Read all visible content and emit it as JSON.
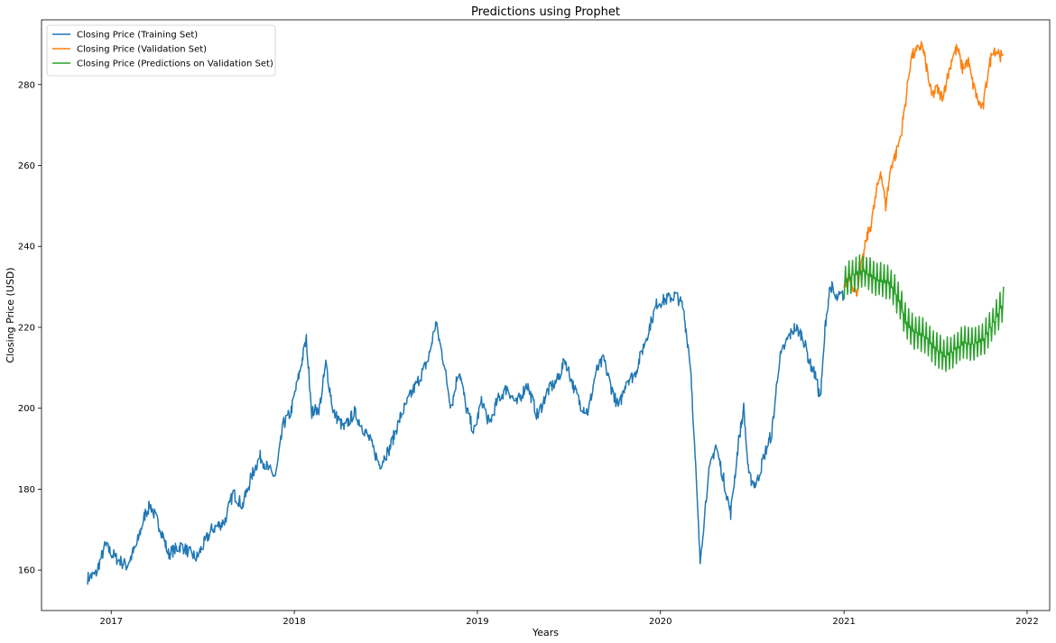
{
  "chart_data": {
    "type": "line",
    "title": "Predictions using Prophet",
    "xlabel": "Years",
    "ylabel": "Closing Price (USD)",
    "x_range": [
      "2016-08-15",
      "2022-02-15"
    ],
    "ylim": [
      150,
      296
    ],
    "x_ticks": [
      {
        "date": "2017-01-01",
        "label": "2017"
      },
      {
        "date": "2018-01-01",
        "label": "2018"
      },
      {
        "date": "2019-01-01",
        "label": "2019"
      },
      {
        "date": "2020-01-01",
        "label": "2020"
      },
      {
        "date": "2021-01-01",
        "label": "2021"
      },
      {
        "date": "2022-01-01",
        "label": "2022"
      }
    ],
    "y_ticks": [
      160,
      180,
      200,
      220,
      240,
      260,
      280
    ],
    "grid": false,
    "legend_position": "top-left",
    "series": [
      {
        "name": "Closing Price (Training Set)",
        "color": "#1f77b4",
        "points": [
          [
            "2016-11-15",
            158
          ],
          [
            "2016-12-01",
            159
          ],
          [
            "2016-12-20",
            166
          ],
          [
            "2017-01-10",
            163
          ],
          [
            "2017-02-01",
            161
          ],
          [
            "2017-02-20",
            166
          ],
          [
            "2017-03-10",
            174
          ],
          [
            "2017-03-20",
            176
          ],
          [
            "2017-04-10",
            170
          ],
          [
            "2017-04-25",
            164
          ],
          [
            "2017-05-20",
            166
          ],
          [
            "2017-06-20",
            163
          ],
          [
            "2017-07-20",
            170
          ],
          [
            "2017-08-15",
            172
          ],
          [
            "2017-09-01",
            179
          ],
          [
            "2017-09-20",
            176
          ],
          [
            "2017-10-10",
            184
          ],
          [
            "2017-10-25",
            188
          ],
          [
            "2017-11-10",
            185
          ],
          [
            "2017-11-25",
            183
          ],
          [
            "2017-12-10",
            196
          ],
          [
            "2017-12-25",
            199
          ],
          [
            "2018-01-10",
            208
          ],
          [
            "2018-01-25",
            217
          ],
          [
            "2018-02-05",
            199
          ],
          [
            "2018-02-20",
            200
          ],
          [
            "2018-03-05",
            211
          ],
          [
            "2018-03-20",
            199
          ],
          [
            "2018-04-10",
            195
          ],
          [
            "2018-05-01",
            199
          ],
          [
            "2018-06-01",
            192
          ],
          [
            "2018-06-20",
            186
          ],
          [
            "2018-07-10",
            190
          ],
          [
            "2018-08-01",
            198
          ],
          [
            "2018-08-20",
            203
          ],
          [
            "2018-09-10",
            208
          ],
          [
            "2018-09-25",
            212
          ],
          [
            "2018-10-10",
            221
          ],
          [
            "2018-10-25",
            212
          ],
          [
            "2018-11-10",
            200
          ],
          [
            "2018-11-25",
            210
          ],
          [
            "2018-12-10",
            200
          ],
          [
            "2018-12-25",
            194
          ],
          [
            "2019-01-10",
            202
          ],
          [
            "2019-01-25",
            196
          ],
          [
            "2019-02-10",
            202
          ],
          [
            "2019-03-01",
            205
          ],
          [
            "2019-03-20",
            201
          ],
          [
            "2019-04-10",
            206
          ],
          [
            "2019-05-01",
            198
          ],
          [
            "2019-05-20",
            204
          ],
          [
            "2019-06-10",
            207
          ],
          [
            "2019-06-25",
            212
          ],
          [
            "2019-07-10",
            206
          ],
          [
            "2019-07-25",
            201
          ],
          [
            "2019-08-10",
            199
          ],
          [
            "2019-08-25",
            209
          ],
          [
            "2019-09-10",
            212
          ],
          [
            "2019-09-25",
            205
          ],
          [
            "2019-10-10",
            200
          ],
          [
            "2019-10-25",
            207
          ],
          [
            "2019-11-10",
            208
          ],
          [
            "2019-11-25",
            214
          ],
          [
            "2019-12-10",
            220
          ],
          [
            "2019-12-25",
            226
          ],
          [
            "2020-01-15",
            227
          ],
          [
            "2020-02-01",
            228
          ],
          [
            "2020-02-15",
            225
          ],
          [
            "2020-03-01",
            211
          ],
          [
            "2020-03-12",
            183
          ],
          [
            "2020-03-20",
            162
          ],
          [
            "2020-04-05",
            183
          ],
          [
            "2020-04-20",
            191
          ],
          [
            "2020-05-05",
            183
          ],
          [
            "2020-05-20",
            174
          ],
          [
            "2020-06-05",
            192
          ],
          [
            "2020-06-15",
            200
          ],
          [
            "2020-06-25",
            183
          ],
          [
            "2020-07-10",
            181
          ],
          [
            "2020-07-25",
            188
          ],
          [
            "2020-08-10",
            194
          ],
          [
            "2020-08-25",
            212
          ],
          [
            "2020-09-10",
            217
          ],
          [
            "2020-09-25",
            220
          ],
          [
            "2020-10-10",
            218
          ],
          [
            "2020-10-25",
            211
          ],
          [
            "2020-11-05",
            208
          ],
          [
            "2020-11-15",
            202
          ],
          [
            "2020-11-25",
            221
          ],
          [
            "2020-12-05",
            231
          ],
          [
            "2020-12-15",
            227
          ],
          [
            "2020-12-31",
            228
          ]
        ]
      },
      {
        "name": "Closing Price (Validation Set)",
        "color": "#ff7f0e",
        "points": [
          [
            "2021-01-01",
            230
          ],
          [
            "2021-01-12",
            233
          ],
          [
            "2021-01-25",
            228
          ],
          [
            "2021-02-05",
            235
          ],
          [
            "2021-02-15",
            242
          ],
          [
            "2021-02-25",
            246
          ],
          [
            "2021-03-05",
            252
          ],
          [
            "2021-03-15",
            259
          ],
          [
            "2021-03-25",
            250
          ],
          [
            "2021-04-05",
            260
          ],
          [
            "2021-04-15",
            263
          ],
          [
            "2021-04-25",
            268
          ],
          [
            "2021-05-05",
            277
          ],
          [
            "2021-05-15",
            287
          ],
          [
            "2021-05-25",
            288
          ],
          [
            "2021-06-05",
            290
          ],
          [
            "2021-06-15",
            284
          ],
          [
            "2021-06-25",
            277
          ],
          [
            "2021-07-05",
            279
          ],
          [
            "2021-07-15",
            277
          ],
          [
            "2021-07-25",
            281
          ],
          [
            "2021-08-05",
            287
          ],
          [
            "2021-08-15",
            289
          ],
          [
            "2021-08-25",
            284
          ],
          [
            "2021-09-05",
            286
          ],
          [
            "2021-09-15",
            280
          ],
          [
            "2021-09-25",
            276
          ],
          [
            "2021-10-05",
            274
          ],
          [
            "2021-10-15",
            283
          ],
          [
            "2021-10-25",
            289
          ],
          [
            "2021-11-05",
            288
          ],
          [
            "2021-11-15",
            286
          ]
        ]
      },
      {
        "name": "Closing Price (Predictions on Validation Set)",
        "color": "#2ca02c",
        "trend": [
          [
            "2021-01-01",
            230
          ],
          [
            "2021-01-20",
            232
          ],
          [
            "2021-02-10",
            233
          ],
          [
            "2021-03-05",
            231
          ],
          [
            "2021-04-01",
            230
          ],
          [
            "2021-04-20",
            226
          ],
          [
            "2021-05-05",
            220
          ],
          [
            "2021-05-20",
            218
          ],
          [
            "2021-06-10",
            217
          ],
          [
            "2021-07-01",
            214
          ],
          [
            "2021-07-20",
            212
          ],
          [
            "2021-08-05",
            213
          ],
          [
            "2021-08-25",
            215
          ],
          [
            "2021-09-15",
            215
          ],
          [
            "2021-10-05",
            216
          ],
          [
            "2021-10-25",
            220
          ],
          [
            "2021-11-15",
            225
          ]
        ],
        "weekly_amplitude": 5
      }
    ]
  }
}
